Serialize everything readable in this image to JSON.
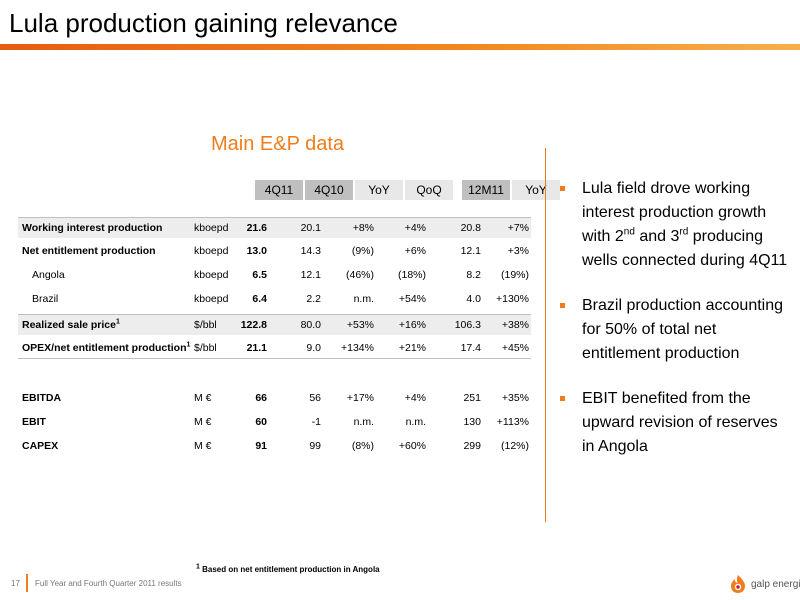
{
  "title": "Lula production gaining relevance",
  "section_title": "Main E&P data",
  "table": {
    "headers": [
      "4Q11",
      "4Q10",
      "YoY",
      "QoQ",
      "12M11",
      "YoY"
    ],
    "rows": [
      {
        "label": "Working interest production",
        "unit": "kboepd",
        "q411": "21.6",
        "q410": "20.1",
        "yoy": "+8%",
        "qoq": "+4%",
        "m12": "20.8",
        "yoy2": "+7%"
      },
      {
        "label": "Net entitlement production",
        "unit": "kboepd",
        "q411": "13.0",
        "q410": "14.3",
        "yoy": "(9%)",
        "qoq": "+6%",
        "m12": "12.1",
        "yoy2": "+3%"
      },
      {
        "label": "Angola",
        "unit": "kboepd",
        "q411": "6.5",
        "q410": "12.1",
        "yoy": "(46%)",
        "qoq": "(18%)",
        "m12": "8.2",
        "yoy2": "(19%)"
      },
      {
        "label": "Brazil",
        "unit": "kboepd",
        "q411": "6.4",
        "q410": "2.2",
        "yoy": "n.m.",
        "qoq": "+54%",
        "m12": "4.0",
        "yoy2": "+130%"
      },
      {
        "label": "Realized sale price",
        "sup": "1",
        "unit": "$/bbl",
        "q411": "122.8",
        "q410": "80.0",
        "yoy": "+53%",
        "qoq": "+16%",
        "m12": "106.3",
        "yoy2": "+38%"
      },
      {
        "label": "OPEX/net entitlement production",
        "sup": "1",
        "unit": "$/bbl",
        "q411": "21.1",
        "q410": "9.0",
        "yoy": "+134%",
        "qoq": "+21%",
        "m12": "17.4",
        "yoy2": "+45%"
      },
      {
        "label": "EBITDA",
        "unit": "M €",
        "q411": "66",
        "q410": "56",
        "yoy": "+17%",
        "qoq": "+4%",
        "m12": "251",
        "yoy2": "+35%"
      },
      {
        "label": "EBIT",
        "unit": "M €",
        "q411": "60",
        "q410": "-1",
        "yoy": "n.m.",
        "qoq": "n.m.",
        "m12": "130",
        "yoy2": "+113%"
      },
      {
        "label": "CAPEX",
        "unit": "M €",
        "q411": "91",
        "q410": "99",
        "yoy": "(8%)",
        "qoq": "+60%",
        "m12": "299",
        "yoy2": "(12%)"
      }
    ]
  },
  "bullets": {
    "b1_pre": "Lula field drove working interest production growth with 2",
    "b1_sup1": "nd",
    "b1_mid": " and 3",
    "b1_sup2": "rd",
    "b1_post": " producing wells connected during 4Q11",
    "b2": "Brazil production accounting for 50% of total net entitlement production",
    "b3": "EBIT benefited from the upward revision of reserves in Angola"
  },
  "footnote": {
    "sup": "1",
    "text": " Based on net entitlement production in Angola"
  },
  "footer": {
    "page_number": "17",
    "text": "Full Year and Fourth Quarter 2011 results",
    "logo_text": "galp energia"
  },
  "colors": {
    "accent": "#ef7d1b",
    "header_shade": "#bfbfbf",
    "row_shade": "#ededed"
  }
}
